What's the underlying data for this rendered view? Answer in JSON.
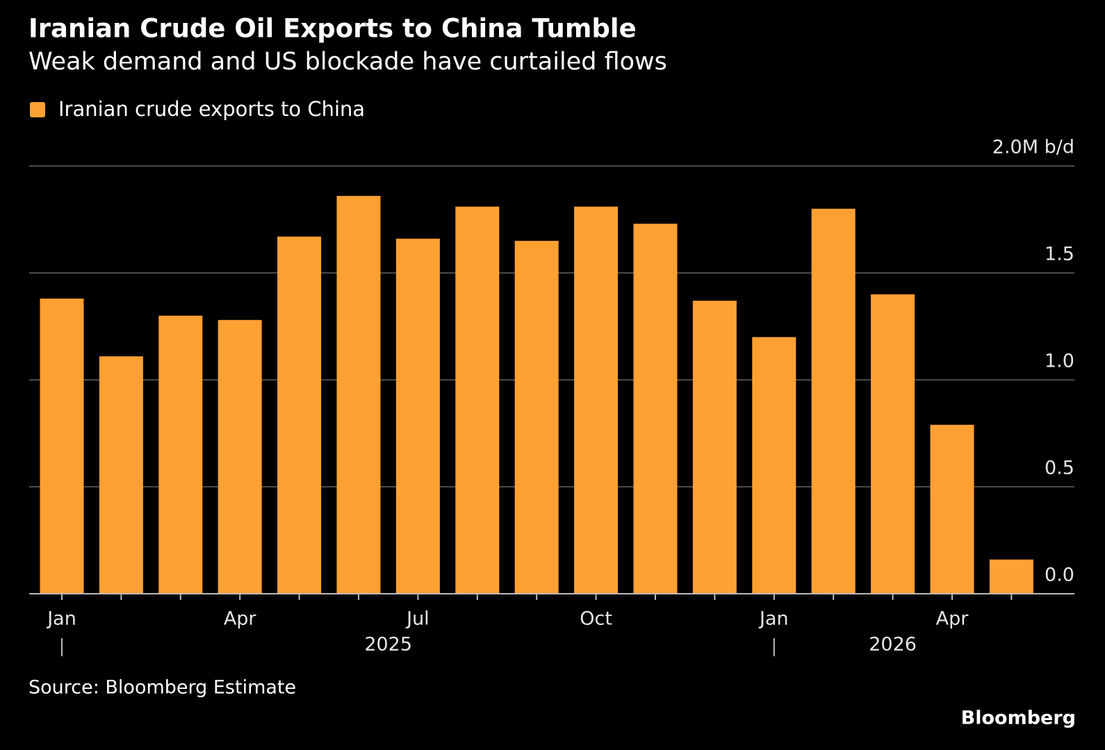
{
  "chart_data": {
    "type": "bar",
    "title": "Iranian Crude Oil Exports to China Tumble",
    "subtitle": "Weak demand and US blockade have curtailed flows",
    "categories": [
      "Jan",
      null,
      null,
      "Apr",
      null,
      null,
      "Jul",
      null,
      null,
      "Oct",
      null,
      null,
      "Jan",
      null,
      null,
      "Apr",
      null
    ],
    "x_groups": [
      {
        "label": "2025",
        "count": 12
      },
      {
        "label": "2026",
        "count": 5
      }
    ],
    "series": [
      {
        "name": "Iranian crude exports to China",
        "color": "#ffa033",
        "values": [
          1.38,
          1.11,
          1.3,
          1.28,
          1.67,
          1.86,
          1.66,
          1.81,
          1.65,
          1.81,
          1.73,
          1.37,
          1.2,
          1.8,
          1.4,
          0.79,
          0.16
        ]
      }
    ],
    "ylim": [
      0,
      2
    ],
    "yticks": [
      {
        "value": 0,
        "label": "0.0"
      },
      {
        "value": 0.5,
        "label": "0.5"
      },
      {
        "value": 1,
        "label": "1.0"
      },
      {
        "value": 1.5,
        "label": "1.5"
      },
      {
        "value": 2,
        "label": "2.0M b/d"
      }
    ],
    "grid": true,
    "source": "Source: Bloomberg Estimate",
    "brand": "Bloomberg"
  }
}
